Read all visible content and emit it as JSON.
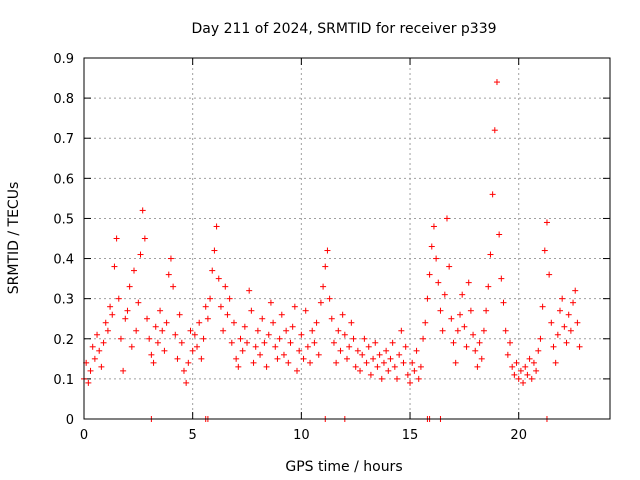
{
  "chart_data": {
    "type": "scatter",
    "title": "Day 211 of 2024, SRMTID for receiver p339",
    "xlabel": "GPS time / hours",
    "ylabel": "SRMTID / TECUs",
    "xlim": [
      0,
      24.2
    ],
    "ylim": [
      0,
      0.9
    ],
    "xticks": [
      "0",
      "5",
      "10",
      "15",
      "20"
    ],
    "yticks": [
      "0",
      "0.1",
      "0.2",
      "0.3",
      "0.4",
      "0.5",
      "0.6",
      "0.7",
      "0.8",
      "0.9"
    ],
    "grid": true,
    "marker": "+",
    "color": "#ff0000",
    "series": [
      {
        "name": "SRMTID",
        "points": [
          [
            0.0,
            0.1
          ],
          [
            0.1,
            0.14
          ],
          [
            0.2,
            0.09
          ],
          [
            0.3,
            0.12
          ],
          [
            0.4,
            0.18
          ],
          [
            0.5,
            0.15
          ],
          [
            0.6,
            0.21
          ],
          [
            0.7,
            0.17
          ],
          [
            0.8,
            0.13
          ],
          [
            0.9,
            0.19
          ],
          [
            1.0,
            0.24
          ],
          [
            1.1,
            0.22
          ],
          [
            1.2,
            0.28
          ],
          [
            1.3,
            0.26
          ],
          [
            1.4,
            0.38
          ],
          [
            1.5,
            0.45
          ],
          [
            1.6,
            0.3
          ],
          [
            1.7,
            0.2
          ],
          [
            1.8,
            0.12
          ],
          [
            1.9,
            0.25
          ],
          [
            2.0,
            0.27
          ],
          [
            2.1,
            0.33
          ],
          [
            2.2,
            0.18
          ],
          [
            2.3,
            0.37
          ],
          [
            2.4,
            0.22
          ],
          [
            2.5,
            0.29
          ],
          [
            2.6,
            0.41
          ],
          [
            2.7,
            0.52
          ],
          [
            2.8,
            0.45
          ],
          [
            2.9,
            0.25
          ],
          [
            3.0,
            0.2
          ],
          [
            3.1,
            0.16
          ],
          [
            3.2,
            0.14
          ],
          [
            3.3,
            0.23
          ],
          [
            3.4,
            0.19
          ],
          [
            3.5,
            0.27
          ],
          [
            3.6,
            0.22
          ],
          [
            3.7,
            0.17
          ],
          [
            3.8,
            0.24
          ],
          [
            3.9,
            0.36
          ],
          [
            4.0,
            0.4
          ],
          [
            4.1,
            0.33
          ],
          [
            4.2,
            0.21
          ],
          [
            4.3,
            0.15
          ],
          [
            4.4,
            0.26
          ],
          [
            4.5,
            0.19
          ],
          [
            4.6,
            0.12
          ],
          [
            4.7,
            0.09
          ],
          [
            4.8,
            0.14
          ],
          [
            4.9,
            0.22
          ],
          [
            5.0,
            0.17
          ],
          [
            5.1,
            0.21
          ],
          [
            5.2,
            0.18
          ],
          [
            5.3,
            0.24
          ],
          [
            5.4,
            0.15
          ],
          [
            5.5,
            0.2
          ],
          [
            5.6,
            0.28
          ],
          [
            5.7,
            0.25
          ],
          [
            5.8,
            0.3
          ],
          [
            5.9,
            0.37
          ],
          [
            6.0,
            0.42
          ],
          [
            6.1,
            0.48
          ],
          [
            6.2,
            0.35
          ],
          [
            6.3,
            0.28
          ],
          [
            6.4,
            0.22
          ],
          [
            6.5,
            0.33
          ],
          [
            6.6,
            0.26
          ],
          [
            6.7,
            0.3
          ],
          [
            6.8,
            0.19
          ],
          [
            6.9,
            0.24
          ],
          [
            7.0,
            0.15
          ],
          [
            7.1,
            0.13
          ],
          [
            7.2,
            0.2
          ],
          [
            7.3,
            0.17
          ],
          [
            7.4,
            0.23
          ],
          [
            7.5,
            0.19
          ],
          [
            7.6,
            0.32
          ],
          [
            7.7,
            0.27
          ],
          [
            7.8,
            0.14
          ],
          [
            7.9,
            0.18
          ],
          [
            8.0,
            0.22
          ],
          [
            8.1,
            0.16
          ],
          [
            8.2,
            0.25
          ],
          [
            8.3,
            0.19
          ],
          [
            8.4,
            0.13
          ],
          [
            8.5,
            0.21
          ],
          [
            8.6,
            0.29
          ],
          [
            8.7,
            0.24
          ],
          [
            8.8,
            0.18
          ],
          [
            8.9,
            0.15
          ],
          [
            9.0,
            0.2
          ],
          [
            9.1,
            0.26
          ],
          [
            9.2,
            0.16
          ],
          [
            9.3,
            0.22
          ],
          [
            9.4,
            0.14
          ],
          [
            9.5,
            0.19
          ],
          [
            9.6,
            0.23
          ],
          [
            9.7,
            0.28
          ],
          [
            9.8,
            0.12
          ],
          [
            9.9,
            0.17
          ],
          [
            10.0,
            0.21
          ],
          [
            10.1,
            0.15
          ],
          [
            10.2,
            0.27
          ],
          [
            10.3,
            0.18
          ],
          [
            10.4,
            0.14
          ],
          [
            10.5,
            0.22
          ],
          [
            10.6,
            0.19
          ],
          [
            10.7,
            0.24
          ],
          [
            10.8,
            0.16
          ],
          [
            10.9,
            0.29
          ],
          [
            11.0,
            0.33
          ],
          [
            11.1,
            0.38
          ],
          [
            11.2,
            0.42
          ],
          [
            11.3,
            0.3
          ],
          [
            11.4,
            0.25
          ],
          [
            11.5,
            0.19
          ],
          [
            11.6,
            0.14
          ],
          [
            11.7,
            0.22
          ],
          [
            11.8,
            0.17
          ],
          [
            11.9,
            0.26
          ],
          [
            12.0,
            0.21
          ],
          [
            12.1,
            0.15
          ],
          [
            12.2,
            0.18
          ],
          [
            12.3,
            0.24
          ],
          [
            12.4,
            0.2
          ],
          [
            12.5,
            0.13
          ],
          [
            12.6,
            0.17
          ],
          [
            12.7,
            0.12
          ],
          [
            12.8,
            0.16
          ],
          [
            12.9,
            0.2
          ],
          [
            13.0,
            0.14
          ],
          [
            13.1,
            0.18
          ],
          [
            13.2,
            0.11
          ],
          [
            13.3,
            0.15
          ],
          [
            13.4,
            0.19
          ],
          [
            13.5,
            0.13
          ],
          [
            13.6,
            0.16
          ],
          [
            13.7,
            0.1
          ],
          [
            13.8,
            0.14
          ],
          [
            13.9,
            0.17
          ],
          [
            14.0,
            0.12
          ],
          [
            14.1,
            0.15
          ],
          [
            14.2,
            0.19
          ],
          [
            14.3,
            0.13
          ],
          [
            14.4,
            0.1
          ],
          [
            14.5,
            0.16
          ],
          [
            14.6,
            0.22
          ],
          [
            14.7,
            0.14
          ],
          [
            14.8,
            0.18
          ],
          [
            14.9,
            0.11
          ],
          [
            15.0,
            0.09
          ],
          [
            15.1,
            0.14
          ],
          [
            15.2,
            0.12
          ],
          [
            15.3,
            0.17
          ],
          [
            15.4,
            0.1
          ],
          [
            15.5,
            0.13
          ],
          [
            15.6,
            0.2
          ],
          [
            15.7,
            0.24
          ],
          [
            15.8,
            0.3
          ],
          [
            15.9,
            0.36
          ],
          [
            16.0,
            0.43
          ],
          [
            16.1,
            0.48
          ],
          [
            16.2,
            0.4
          ],
          [
            16.3,
            0.34
          ],
          [
            16.4,
            0.27
          ],
          [
            16.5,
            0.22
          ],
          [
            16.6,
            0.31
          ],
          [
            16.7,
            0.5
          ],
          [
            16.8,
            0.38
          ],
          [
            16.9,
            0.25
          ],
          [
            17.0,
            0.19
          ],
          [
            17.1,
            0.14
          ],
          [
            17.2,
            0.22
          ],
          [
            17.3,
            0.26
          ],
          [
            17.4,
            0.31
          ],
          [
            17.5,
            0.23
          ],
          [
            17.6,
            0.18
          ],
          [
            17.7,
            0.34
          ],
          [
            17.8,
            0.27
          ],
          [
            17.9,
            0.21
          ],
          [
            18.0,
            0.17
          ],
          [
            18.1,
            0.13
          ],
          [
            18.2,
            0.19
          ],
          [
            18.3,
            0.15
          ],
          [
            18.4,
            0.22
          ],
          [
            18.5,
            0.27
          ],
          [
            18.6,
            0.33
          ],
          [
            18.7,
            0.41
          ],
          [
            18.8,
            0.56
          ],
          [
            18.9,
            0.72
          ],
          [
            19.0,
            0.84
          ],
          [
            19.1,
            0.46
          ],
          [
            19.2,
            0.35
          ],
          [
            19.3,
            0.29
          ],
          [
            19.4,
            0.22
          ],
          [
            19.5,
            0.16
          ],
          [
            19.6,
            0.19
          ],
          [
            19.7,
            0.13
          ],
          [
            19.8,
            0.11
          ],
          [
            19.9,
            0.14
          ],
          [
            20.0,
            0.1
          ],
          [
            20.1,
            0.12
          ],
          [
            20.2,
            0.09
          ],
          [
            20.3,
            0.13
          ],
          [
            20.4,
            0.11
          ],
          [
            20.5,
            0.15
          ],
          [
            20.6,
            0.1
          ],
          [
            20.7,
            0.14
          ],
          [
            20.8,
            0.12
          ],
          [
            20.9,
            0.17
          ],
          [
            21.0,
            0.2
          ],
          [
            21.1,
            0.28
          ],
          [
            21.2,
            0.42
          ],
          [
            21.3,
            0.49
          ],
          [
            21.4,
            0.36
          ],
          [
            21.5,
            0.24
          ],
          [
            21.6,
            0.18
          ],
          [
            21.7,
            0.14
          ],
          [
            21.8,
            0.21
          ],
          [
            21.9,
            0.27
          ],
          [
            22.0,
            0.3
          ],
          [
            22.1,
            0.23
          ],
          [
            22.2,
            0.19
          ],
          [
            22.3,
            0.26
          ],
          [
            22.4,
            0.22
          ],
          [
            22.5,
            0.29
          ],
          [
            22.6,
            0.32
          ],
          [
            22.7,
            0.24
          ],
          [
            22.8,
            0.18
          ]
        ]
      }
    ],
    "zero_markers_x": [
      3.1,
      5.6,
      5.7,
      11.1,
      12.0,
      15.8,
      15.9,
      16.4,
      21.3
    ]
  }
}
